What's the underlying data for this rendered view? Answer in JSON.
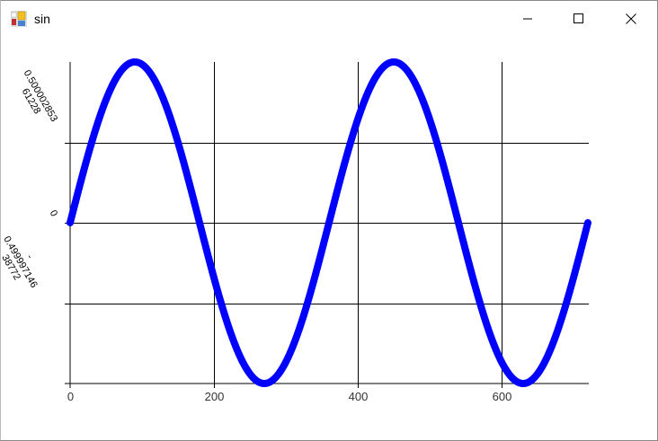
{
  "window": {
    "title": "sin",
    "icons": {
      "app": "winforms-app-icon",
      "minimize": "minimize-icon",
      "maximize": "maximize-icon",
      "close": "close-icon"
    }
  },
  "chart_data": {
    "type": "line",
    "function": "sin(x degrees)",
    "x_range": [
      0,
      720
    ],
    "ylim": [
      -1,
      1
    ],
    "x_ticks": [
      "0",
      "200",
      "400",
      "600"
    ],
    "x_tick_values": [
      0,
      200,
      400,
      600
    ],
    "y_ticks": [
      "0.50000285361228",
      "0",
      "-0.49999714638772"
    ],
    "y_tick_lines": [
      "0.500002853\n61228",
      "0",
      "-\n0.499997146\n38772"
    ],
    "y_tick_values": [
      0.5,
      0,
      -0.5
    ],
    "grid": true,
    "line_color": "#0000ff",
    "series": [
      {
        "x_step": 1,
        "x_start": 0,
        "x_end": 720
      }
    ]
  }
}
